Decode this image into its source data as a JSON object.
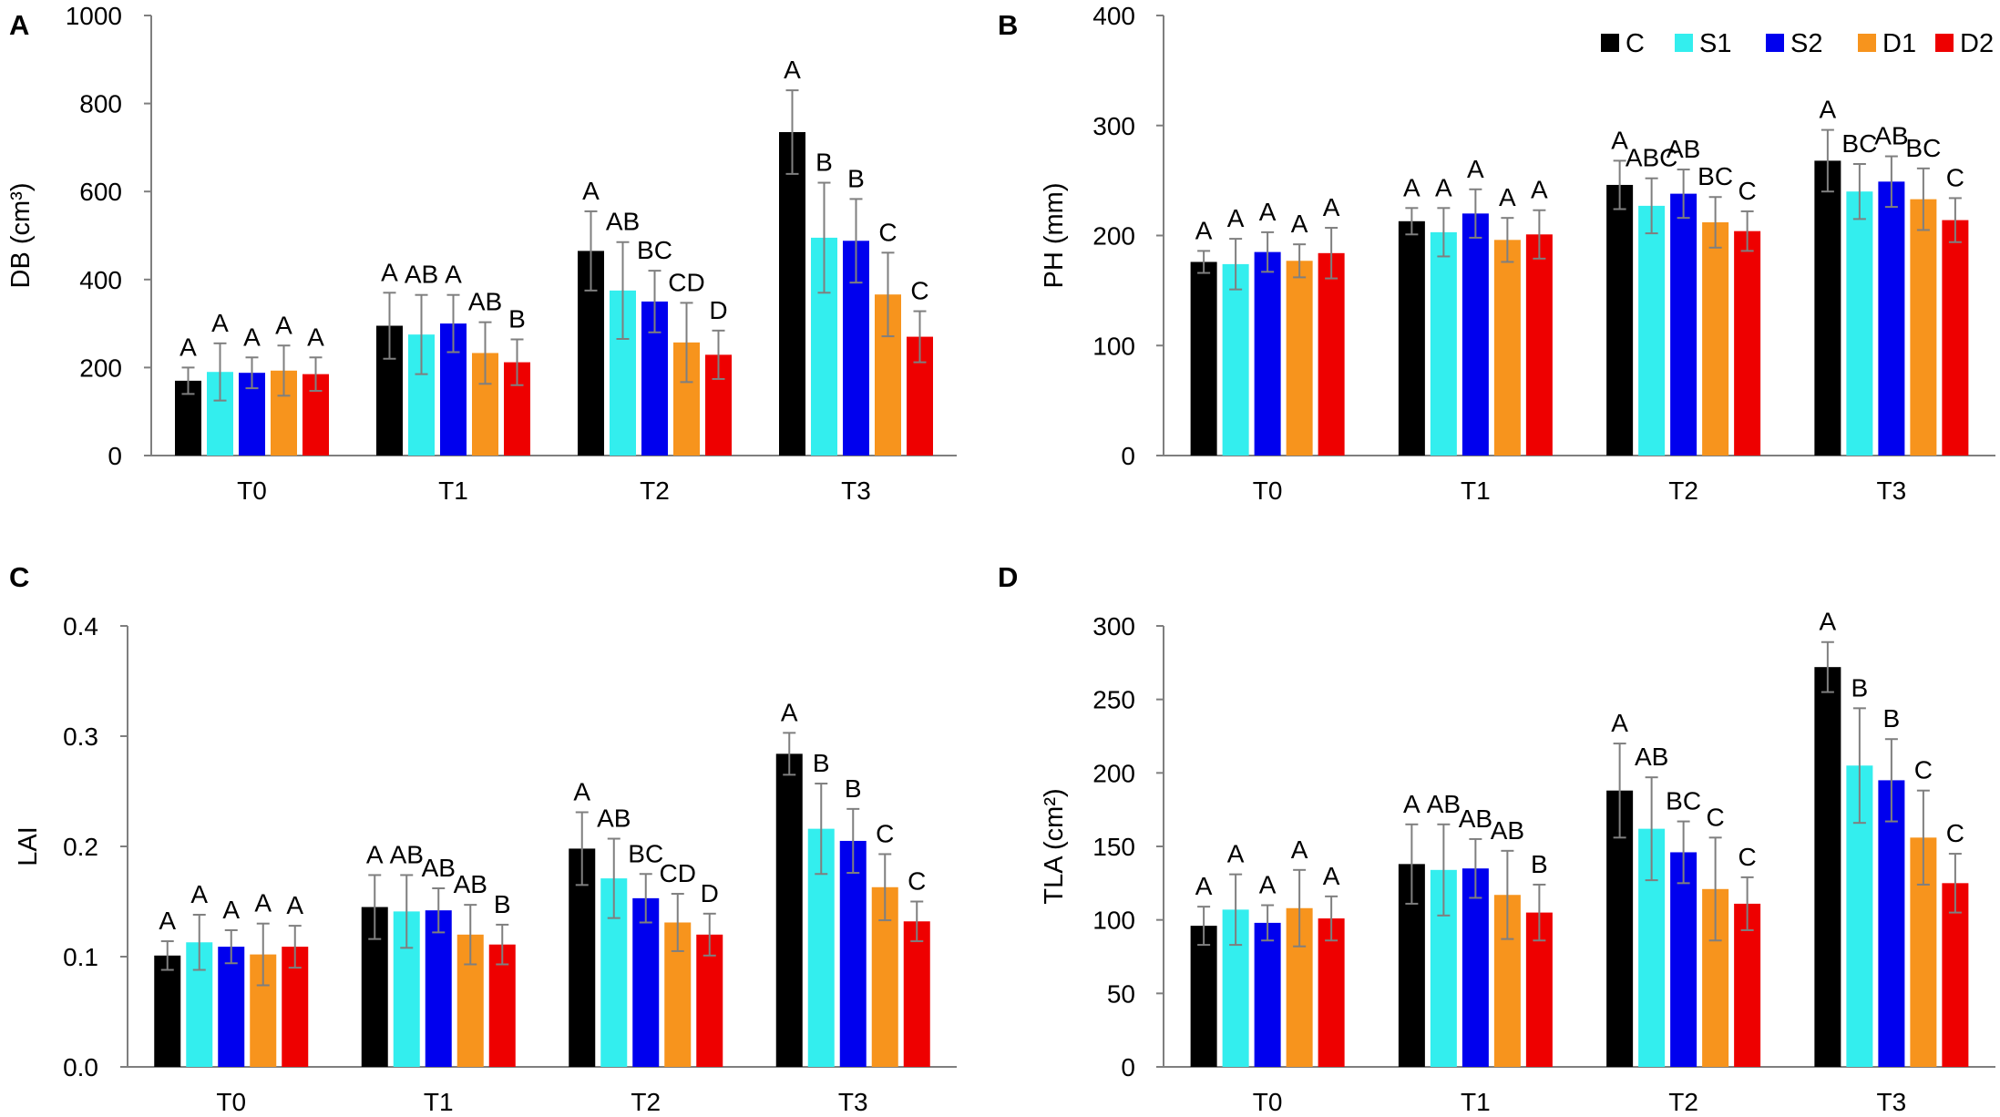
{
  "legend": {
    "items": [
      {
        "label": "C",
        "color": "#000000"
      },
      {
        "label": "S1",
        "color": "#33eeee"
      },
      {
        "label": "S2",
        "color": "#0000ee"
      },
      {
        "label": "D1",
        "color": "#f7941d"
      },
      {
        "label": "D2",
        "color": "#ee0000"
      }
    ]
  },
  "chart_data": [
    {
      "panel": "A",
      "type": "bar",
      "title": "",
      "xlabel": "",
      "ylabel": "DB (cm³)",
      "ylim": [
        0,
        1000
      ],
      "yticks": [
        0,
        200,
        400,
        600,
        800,
        1000
      ],
      "categories": [
        "T0",
        "T1",
        "T2",
        "T3"
      ],
      "series": [
        {
          "name": "C",
          "color": "#000000",
          "values": [
            170,
            295,
            465,
            735
          ],
          "errors": [
            30,
            75,
            90,
            95
          ],
          "labels": [
            "A",
            "A",
            "A",
            "A"
          ]
        },
        {
          "name": "S1",
          "color": "#33eeee",
          "values": [
            190,
            275,
            375,
            495
          ],
          "errors": [
            65,
            90,
            110,
            125
          ],
          "labels": [
            "A",
            "AB",
            "AB",
            "B"
          ]
        },
        {
          "name": "S2",
          "color": "#0000ee",
          "values": [
            188,
            300,
            350,
            488
          ],
          "errors": [
            35,
            65,
            70,
            95
          ],
          "labels": [
            "A",
            "A",
            "BC",
            "B"
          ]
        },
        {
          "name": "D1",
          "color": "#f7941d",
          "values": [
            193,
            233,
            257,
            366
          ],
          "errors": [
            57,
            70,
            90,
            95
          ],
          "labels": [
            "A",
            "AB",
            "CD",
            "C"
          ]
        },
        {
          "name": "D2",
          "color": "#ee0000",
          "values": [
            185,
            212,
            229,
            270
          ],
          "errors": [
            38,
            52,
            55,
            58
          ],
          "labels": [
            "A",
            "B",
            "D",
            "C"
          ]
        }
      ]
    },
    {
      "panel": "B",
      "type": "bar",
      "title": "",
      "xlabel": "",
      "ylabel": "PH (mm)",
      "ylim": [
        0,
        400
      ],
      "yticks": [
        0,
        100,
        200,
        300,
        400
      ],
      "categories": [
        "T0",
        "T1",
        "T2",
        "T3"
      ],
      "series": [
        {
          "name": "C",
          "color": "#000000",
          "values": [
            176,
            213,
            246,
            268
          ],
          "errors": [
            10,
            12,
            22,
            28
          ],
          "labels": [
            "A",
            "A",
            "A",
            "A"
          ]
        },
        {
          "name": "S1",
          "color": "#33eeee",
          "values": [
            174,
            203,
            227,
            240
          ],
          "errors": [
            23,
            22,
            25,
            25
          ],
          "labels": [
            "A",
            "A",
            "ABC",
            "BC"
          ]
        },
        {
          "name": "S2",
          "color": "#0000ee",
          "values": [
            185,
            220,
            238,
            249
          ],
          "errors": [
            18,
            22,
            22,
            23
          ],
          "labels": [
            "A",
            "A",
            "AB",
            "AB"
          ]
        },
        {
          "name": "D1",
          "color": "#f7941d",
          "values": [
            177,
            196,
            212,
            233
          ],
          "errors": [
            15,
            20,
            23,
            28
          ],
          "labels": [
            "A",
            "A",
            "BC",
            "BC"
          ]
        },
        {
          "name": "D2",
          "color": "#ee0000",
          "values": [
            184,
            201,
            204,
            214
          ],
          "errors": [
            23,
            22,
            18,
            20
          ],
          "labels": [
            "A",
            "A",
            "C",
            "C"
          ]
        }
      ]
    },
    {
      "panel": "C",
      "type": "bar",
      "title": "",
      "xlabel": "",
      "ylabel": "LAI",
      "ylim": [
        0,
        0.4
      ],
      "yticks": [
        "0.0",
        "0.1",
        "0.2",
        "0.3",
        "0.4"
      ],
      "categories": [
        "T0",
        "T1",
        "T2",
        "T3"
      ],
      "series": [
        {
          "name": "C",
          "color": "#000000",
          "values": [
            0.101,
            0.145,
            0.198,
            0.284
          ],
          "errors": [
            0.013,
            0.029,
            0.033,
            0.019
          ],
          "labels": [
            "A",
            "A",
            "A",
            "A"
          ]
        },
        {
          "name": "S1",
          "color": "#33eeee",
          "values": [
            0.113,
            0.141,
            0.171,
            0.216
          ],
          "errors": [
            0.025,
            0.033,
            0.036,
            0.041
          ],
          "labels": [
            "A",
            "AB",
            "AB",
            "B"
          ]
        },
        {
          "name": "S2",
          "color": "#0000ee",
          "values": [
            0.109,
            0.142,
            0.153,
            0.205
          ],
          "errors": [
            0.015,
            0.02,
            0.022,
            0.029
          ],
          "labels": [
            "A",
            "AB",
            "BC",
            "B"
          ]
        },
        {
          "name": "D1",
          "color": "#f7941d",
          "values": [
            0.102,
            0.12,
            0.131,
            0.163
          ],
          "errors": [
            0.028,
            0.027,
            0.026,
            0.03
          ],
          "labels": [
            "A",
            "AB",
            "CD",
            "C"
          ]
        },
        {
          "name": "D2",
          "color": "#ee0000",
          "values": [
            0.109,
            0.111,
            0.12,
            0.132
          ],
          "errors": [
            0.019,
            0.018,
            0.019,
            0.018
          ],
          "labels": [
            "A",
            "B",
            "D",
            "C"
          ]
        }
      ]
    },
    {
      "panel": "D",
      "type": "bar",
      "title": "",
      "xlabel": "",
      "ylabel": "TLA (cm²)",
      "ylim": [
        0,
        300
      ],
      "yticks": [
        0,
        50,
        100,
        150,
        200,
        250,
        300
      ],
      "categories": [
        "T0",
        "T1",
        "T2",
        "T3"
      ],
      "series": [
        {
          "name": "C",
          "color": "#000000",
          "values": [
            96,
            138,
            188,
            272
          ],
          "errors": [
            13,
            27,
            32,
            17
          ],
          "labels": [
            "A",
            "A",
            "A",
            "A"
          ]
        },
        {
          "name": "S1",
          "color": "#33eeee",
          "values": [
            107,
            134,
            162,
            205
          ],
          "errors": [
            24,
            31,
            35,
            39
          ],
          "labels": [
            "A",
            "AB",
            "AB",
            "B"
          ]
        },
        {
          "name": "S2",
          "color": "#0000ee",
          "values": [
            98,
            135,
            146,
            195
          ],
          "errors": [
            12,
            20,
            21,
            28
          ],
          "labels": [
            "A",
            "AB",
            "BC",
            "B"
          ]
        },
        {
          "name": "D1",
          "color": "#f7941d",
          "values": [
            108,
            117,
            121,
            156
          ],
          "errors": [
            26,
            30,
            35,
            32
          ],
          "labels": [
            "A",
            "AB",
            "C",
            "C"
          ]
        },
        {
          "name": "D2",
          "color": "#ee0000",
          "values": [
            101,
            105,
            111,
            125
          ],
          "errors": [
            15,
            19,
            18,
            20
          ],
          "labels": [
            "A",
            "B",
            "C",
            "C"
          ]
        }
      ]
    }
  ]
}
